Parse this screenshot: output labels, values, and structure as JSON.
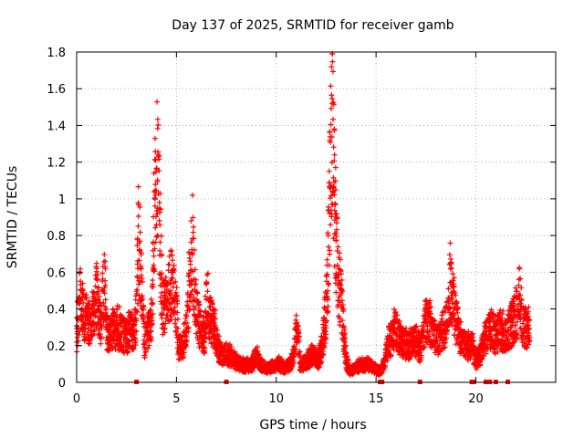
{
  "chart_data": {
    "type": "scatter",
    "title": "Day 137 of 2025, SRMTID for receiver gamb",
    "xlabel": "GPS time / hours",
    "ylabel": "SRMTID / TECUs",
    "xlim": [
      0,
      24
    ],
    "ylim": [
      0,
      1.8
    ],
    "xticks": [
      "0",
      "5",
      "10",
      "15",
      "20"
    ],
    "yticks": [
      "0",
      "0.2",
      "0.4",
      "0.6",
      "0.8",
      "1",
      "1.2",
      "1.4",
      "1.6",
      "1.8"
    ],
    "grid": true,
    "marker": "+",
    "color": "#ff0000",
    "profile": [
      [
        0.0,
        0.22
      ],
      [
        0.1,
        0.4
      ],
      [
        0.2,
        0.5
      ],
      [
        0.3,
        0.4
      ],
      [
        0.5,
        0.35
      ],
      [
        0.7,
        0.33
      ],
      [
        0.9,
        0.4
      ],
      [
        1.0,
        0.5
      ],
      [
        1.2,
        0.3
      ],
      [
        1.4,
        0.6
      ],
      [
        1.5,
        0.3
      ],
      [
        1.6,
        0.26
      ],
      [
        1.8,
        0.28
      ],
      [
        2.0,
        0.3
      ],
      [
        2.2,
        0.28
      ],
      [
        2.5,
        0.25
      ],
      [
        2.7,
        0.3
      ],
      [
        2.9,
        0.27
      ],
      [
        3.0,
        0.4
      ],
      [
        3.1,
        0.85
      ],
      [
        3.2,
        0.65
      ],
      [
        3.3,
        0.45
      ],
      [
        3.4,
        0.2
      ],
      [
        3.5,
        0.25
      ],
      [
        3.7,
        0.3
      ],
      [
        3.8,
        0.45
      ],
      [
        3.9,
        0.9
      ],
      [
        4.0,
        1.2
      ],
      [
        4.1,
        1.0
      ],
      [
        4.2,
        0.7
      ],
      [
        4.3,
        0.4
      ],
      [
        4.5,
        0.45
      ],
      [
        4.7,
        0.55
      ],
      [
        4.9,
        0.5
      ],
      [
        5.0,
        0.4
      ],
      [
        5.1,
        0.2
      ],
      [
        5.3,
        0.18
      ],
      [
        5.5,
        0.3
      ],
      [
        5.7,
        0.6
      ],
      [
        5.8,
        0.8
      ],
      [
        5.9,
        0.55
      ],
      [
        6.0,
        0.4
      ],
      [
        6.2,
        0.28
      ],
      [
        6.4,
        0.25
      ],
      [
        6.5,
        0.45
      ],
      [
        6.7,
        0.35
      ],
      [
        6.9,
        0.3
      ],
      [
        7.1,
        0.18
      ],
      [
        7.3,
        0.15
      ],
      [
        7.6,
        0.15
      ],
      [
        7.9,
        0.12
      ],
      [
        8.2,
        0.1
      ],
      [
        8.5,
        0.09
      ],
      [
        8.8,
        0.1
      ],
      [
        9.0,
        0.15
      ],
      [
        9.2,
        0.1
      ],
      [
        9.5,
        0.08
      ],
      [
        9.8,
        0.09
      ],
      [
        10.1,
        0.1
      ],
      [
        10.4,
        0.08
      ],
      [
        10.7,
        0.1
      ],
      [
        10.9,
        0.15
      ],
      [
        11.0,
        0.3
      ],
      [
        11.1,
        0.25
      ],
      [
        11.2,
        0.08
      ],
      [
        11.5,
        0.12
      ],
      [
        11.8,
        0.15
      ],
      [
        12.1,
        0.12
      ],
      [
        12.3,
        0.2
      ],
      [
        12.5,
        0.4
      ],
      [
        12.6,
        0.7
      ],
      [
        12.7,
        1.15
      ],
      [
        12.8,
        1.45
      ],
      [
        12.9,
        1.1
      ],
      [
        13.0,
        0.8
      ],
      [
        13.1,
        0.6
      ],
      [
        13.2,
        0.5
      ],
      [
        13.3,
        0.4
      ],
      [
        13.4,
        0.25
      ],
      [
        13.5,
        0.12
      ],
      [
        13.7,
        0.06
      ],
      [
        14.0,
        0.08
      ],
      [
        14.3,
        0.1
      ],
      [
        14.6,
        0.1
      ],
      [
        14.9,
        0.08
      ],
      [
        15.2,
        0.06
      ],
      [
        15.4,
        0.1
      ],
      [
        15.6,
        0.2
      ],
      [
        15.8,
        0.25
      ],
      [
        16.0,
        0.3
      ],
      [
        16.3,
        0.22
      ],
      [
        16.6,
        0.2
      ],
      [
        16.9,
        0.25
      ],
      [
        17.2,
        0.18
      ],
      [
        17.5,
        0.35
      ],
      [
        17.8,
        0.3
      ],
      [
        18.1,
        0.22
      ],
      [
        18.4,
        0.3
      ],
      [
        18.6,
        0.35
      ],
      [
        18.7,
        0.55
      ],
      [
        18.9,
        0.4
      ],
      [
        19.1,
        0.3
      ],
      [
        19.3,
        0.22
      ],
      [
        19.5,
        0.2
      ],
      [
        19.8,
        0.2
      ],
      [
        20.0,
        0.12
      ],
      [
        20.2,
        0.15
      ],
      [
        20.5,
        0.25
      ],
      [
        20.8,
        0.3
      ],
      [
        21.0,
        0.25
      ],
      [
        21.2,
        0.3
      ],
      [
        21.5,
        0.25
      ],
      [
        21.7,
        0.3
      ],
      [
        21.9,
        0.35
      ],
      [
        22.1,
        0.4
      ],
      [
        22.2,
        0.5
      ],
      [
        22.3,
        0.35
      ],
      [
        22.5,
        0.3
      ],
      [
        22.7,
        0.32
      ]
    ],
    "zero_points": [
      3.0,
      7.5,
      15.2,
      15.3,
      17.2,
      19.8,
      19.9,
      20.5,
      20.7,
      21.0,
      21.6
    ]
  }
}
